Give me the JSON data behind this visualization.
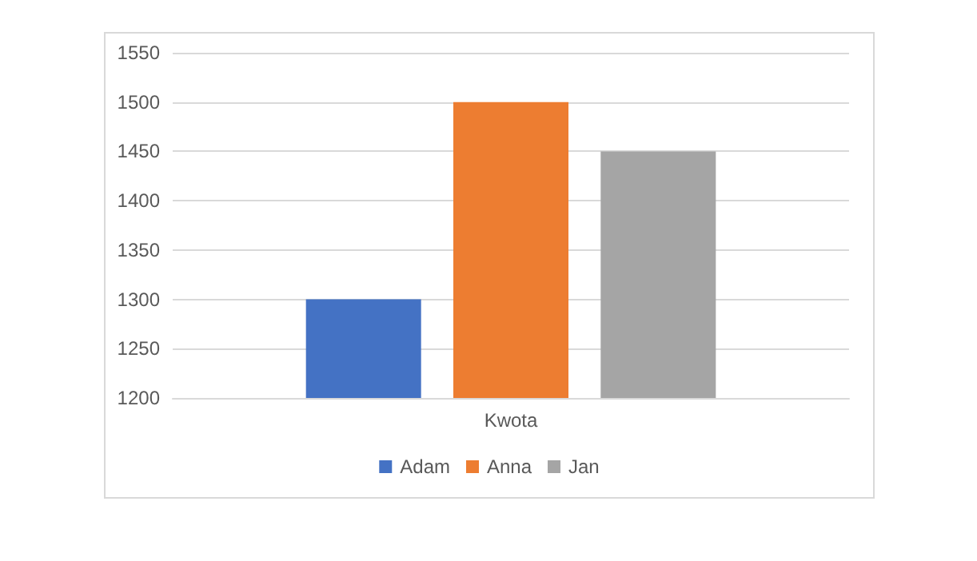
{
  "chart_data": {
    "type": "bar",
    "categories": [
      "Kwota"
    ],
    "series": [
      {
        "name": "Adam",
        "color": "#4472c4",
        "values": [
          1300
        ]
      },
      {
        "name": "Anna",
        "color": "#ed7d31",
        "values": [
          1500
        ]
      },
      {
        "name": "Jan",
        "color": "#a5a5a5",
        "values": [
          1450
        ]
      }
    ],
    "ylim": [
      1200,
      1550
    ],
    "yticks": [
      1200,
      1250,
      1300,
      1350,
      1400,
      1450,
      1500,
      1550
    ],
    "grid": "y",
    "legend": "bottom"
  }
}
